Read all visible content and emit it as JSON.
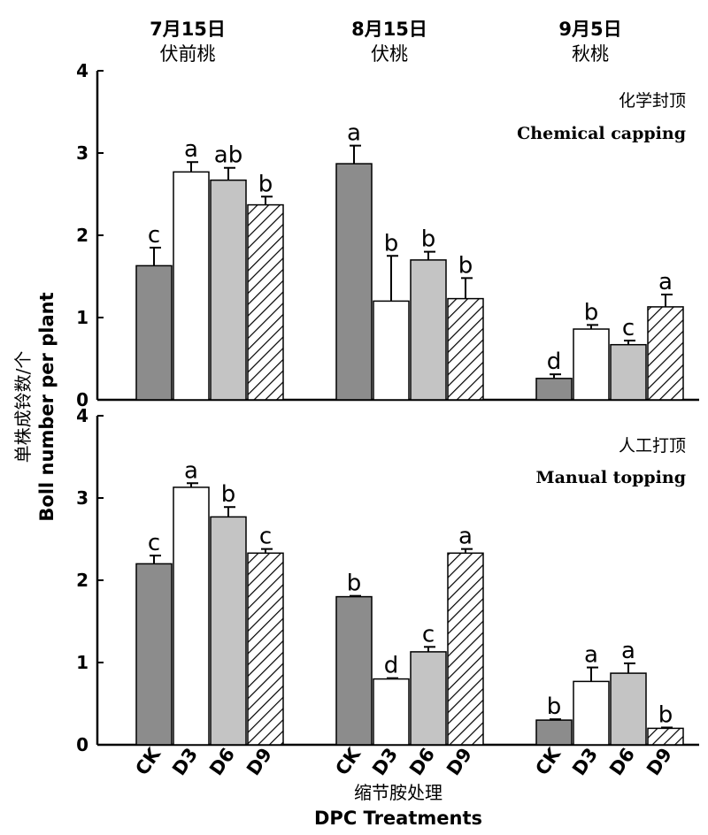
{
  "chart_data": [
    {
      "type": "bar",
      "panel_label_cn": "化学封顶",
      "panel_label_en": "Chemical capping",
      "ylabel_cn": "单株成铃数/个",
      "ylabel_en": "Boll number per plant",
      "ylim": [
        0,
        4
      ],
      "yticks": [
        "0",
        "1",
        "2",
        "3",
        "4"
      ],
      "groups": [
        {
          "date": "7月15日",
          "name": "伏前桃"
        },
        {
          "date": "8月15日",
          "name": "伏桃"
        },
        {
          "date": "9月5日",
          "name": "秋桃"
        }
      ],
      "treatments": [
        "CK",
        "D3",
        "D6",
        "D9"
      ],
      "series": [
        {
          "name": "CK",
          "values": [
            1.63,
            2.87,
            0.26
          ],
          "errors": [
            0.22,
            0.22,
            0.05
          ],
          "letters": [
            "c",
            "a",
            "d"
          ]
        },
        {
          "name": "D3",
          "values": [
            2.77,
            1.2,
            0.86
          ],
          "errors": [
            0.12,
            0.55,
            0.05
          ],
          "letters": [
            "a",
            "b",
            "b"
          ]
        },
        {
          "name": "D6",
          "values": [
            2.67,
            1.7,
            0.67
          ],
          "errors": [
            0.15,
            0.1,
            0.05
          ],
          "letters": [
            "ab",
            "b",
            "c"
          ]
        },
        {
          "name": "D9",
          "values": [
            2.37,
            1.23,
            1.13
          ],
          "errors": [
            0.1,
            0.25,
            0.15
          ],
          "letters": [
            "b",
            "b",
            "a"
          ]
        }
      ]
    },
    {
      "type": "bar",
      "panel_label_cn": "人工打顶",
      "panel_label_en": "Manual topping",
      "ylim": [
        0,
        4
      ],
      "yticks": [
        "0",
        "1",
        "2",
        "3",
        "4"
      ],
      "xlabel_cn": "缩节胺处理",
      "xlabel_en": "DPC Treatments",
      "treatments": [
        "CK",
        "D3",
        "D6",
        "D9"
      ],
      "series": [
        {
          "name": "CK",
          "values": [
            2.2,
            1.8,
            0.3
          ],
          "errors": [
            0.1,
            0.01,
            0.01
          ],
          "letters": [
            "c",
            "b",
            "b"
          ]
        },
        {
          "name": "D3",
          "values": [
            3.13,
            0.8,
            0.77
          ],
          "errors": [
            0.05,
            0.01,
            0.17
          ],
          "letters": [
            "a",
            "d",
            "a"
          ]
        },
        {
          "name": "D6",
          "values": [
            2.77,
            1.13,
            0.87
          ],
          "errors": [
            0.12,
            0.06,
            0.12
          ],
          "letters": [
            "b",
            "c",
            "a"
          ]
        },
        {
          "name": "D9",
          "values": [
            2.33,
            2.33,
            0.2
          ],
          "errors": [
            0.05,
            0.05,
            0.01
          ],
          "letters": [
            "c",
            "a",
            "b"
          ]
        }
      ]
    }
  ],
  "styles": {
    "CK": "#8c8c8c",
    "D3": "#ffffff",
    "D6": "#c4c4c4",
    "D9": "hatch"
  }
}
